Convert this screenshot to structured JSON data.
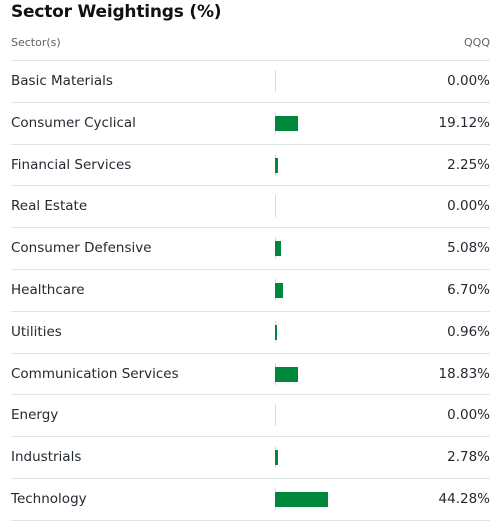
{
  "title": "Sector Weightings (%)",
  "header": {
    "sector_label": "Sector(s)",
    "fund_label": "QQQ"
  },
  "colors": {
    "bar": "#00873c",
    "divider": "#e0e4e9",
    "text": "#232a31",
    "muted": "#5b636a"
  },
  "sectors": [
    {
      "name": "Basic Materials",
      "value_text": "0.00%",
      "weight": 0.0
    },
    {
      "name": "Consumer Cyclical",
      "value_text": "19.12%",
      "weight": 19.12
    },
    {
      "name": "Financial Services",
      "value_text": "2.25%",
      "weight": 2.25
    },
    {
      "name": "Real Estate",
      "value_text": "0.00%",
      "weight": 0.0
    },
    {
      "name": "Consumer Defensive",
      "value_text": "5.08%",
      "weight": 5.08
    },
    {
      "name": "Healthcare",
      "value_text": "6.70%",
      "weight": 6.7
    },
    {
      "name": "Utilities",
      "value_text": "0.96%",
      "weight": 0.96
    },
    {
      "name": "Communication Services",
      "value_text": "18.83%",
      "weight": 18.83
    },
    {
      "name": "Energy",
      "value_text": "0.00%",
      "weight": 0.0
    },
    {
      "name": "Industrials",
      "value_text": "2.78%",
      "weight": 2.78
    },
    {
      "name": "Technology",
      "value_text": "44.28%",
      "weight": 44.28
    }
  ]
}
